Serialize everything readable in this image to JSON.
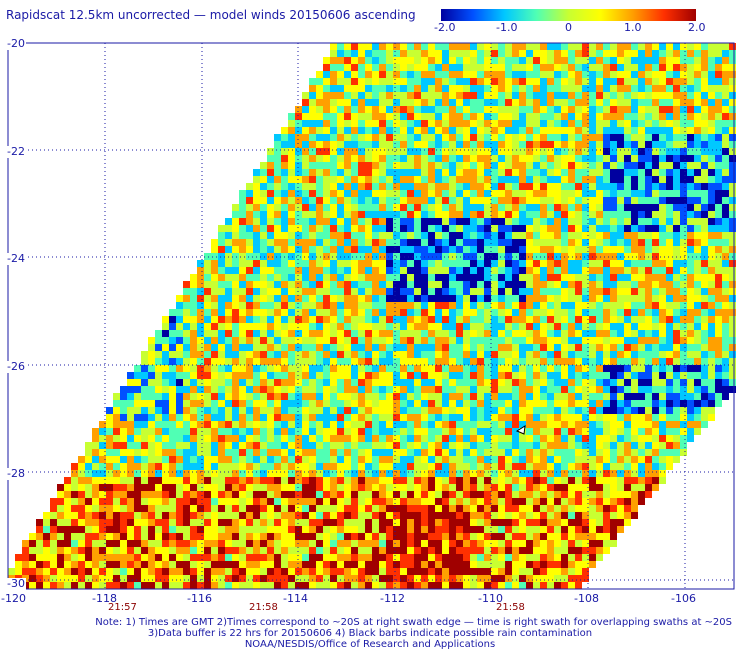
{
  "title": "Rapidscat 12.5km uncorrected — model winds 20150606 ascending",
  "colorbar": {
    "labels": [
      "-2.0",
      "-1.0",
      "0",
      "1.0",
      "2.0"
    ],
    "min": -2.0,
    "max": 2.0,
    "colors": [
      "#0000a0",
      "#0050ff",
      "#00c8ff",
      "#50ffb4",
      "#c8ff32",
      "#ffff00",
      "#ffa000",
      "#ff3000",
      "#a00000"
    ]
  },
  "map": {
    "lat_labels": [
      "-20",
      "-22",
      "-24",
      "-26",
      "-28",
      "-30"
    ],
    "lon_labels": [
      "-120",
      "-118",
      "-116",
      "-114",
      "-112",
      "-110",
      "-108",
      "-106"
    ],
    "time_labels": [
      "21:57",
      "21:58",
      "21:58"
    ]
  },
  "notes": {
    "line1": "Note: 1) Times are GMT 2)Times correspond to ~20S at right swath edge — time is right swath for overlapping swaths at ~20S",
    "line2": "3)Data buffer is 22 hrs for 20150606 4) Black barbs indicate possible rain contamination",
    "line3": "NOAA/NESDIS/Office of Research and Applications"
  }
}
